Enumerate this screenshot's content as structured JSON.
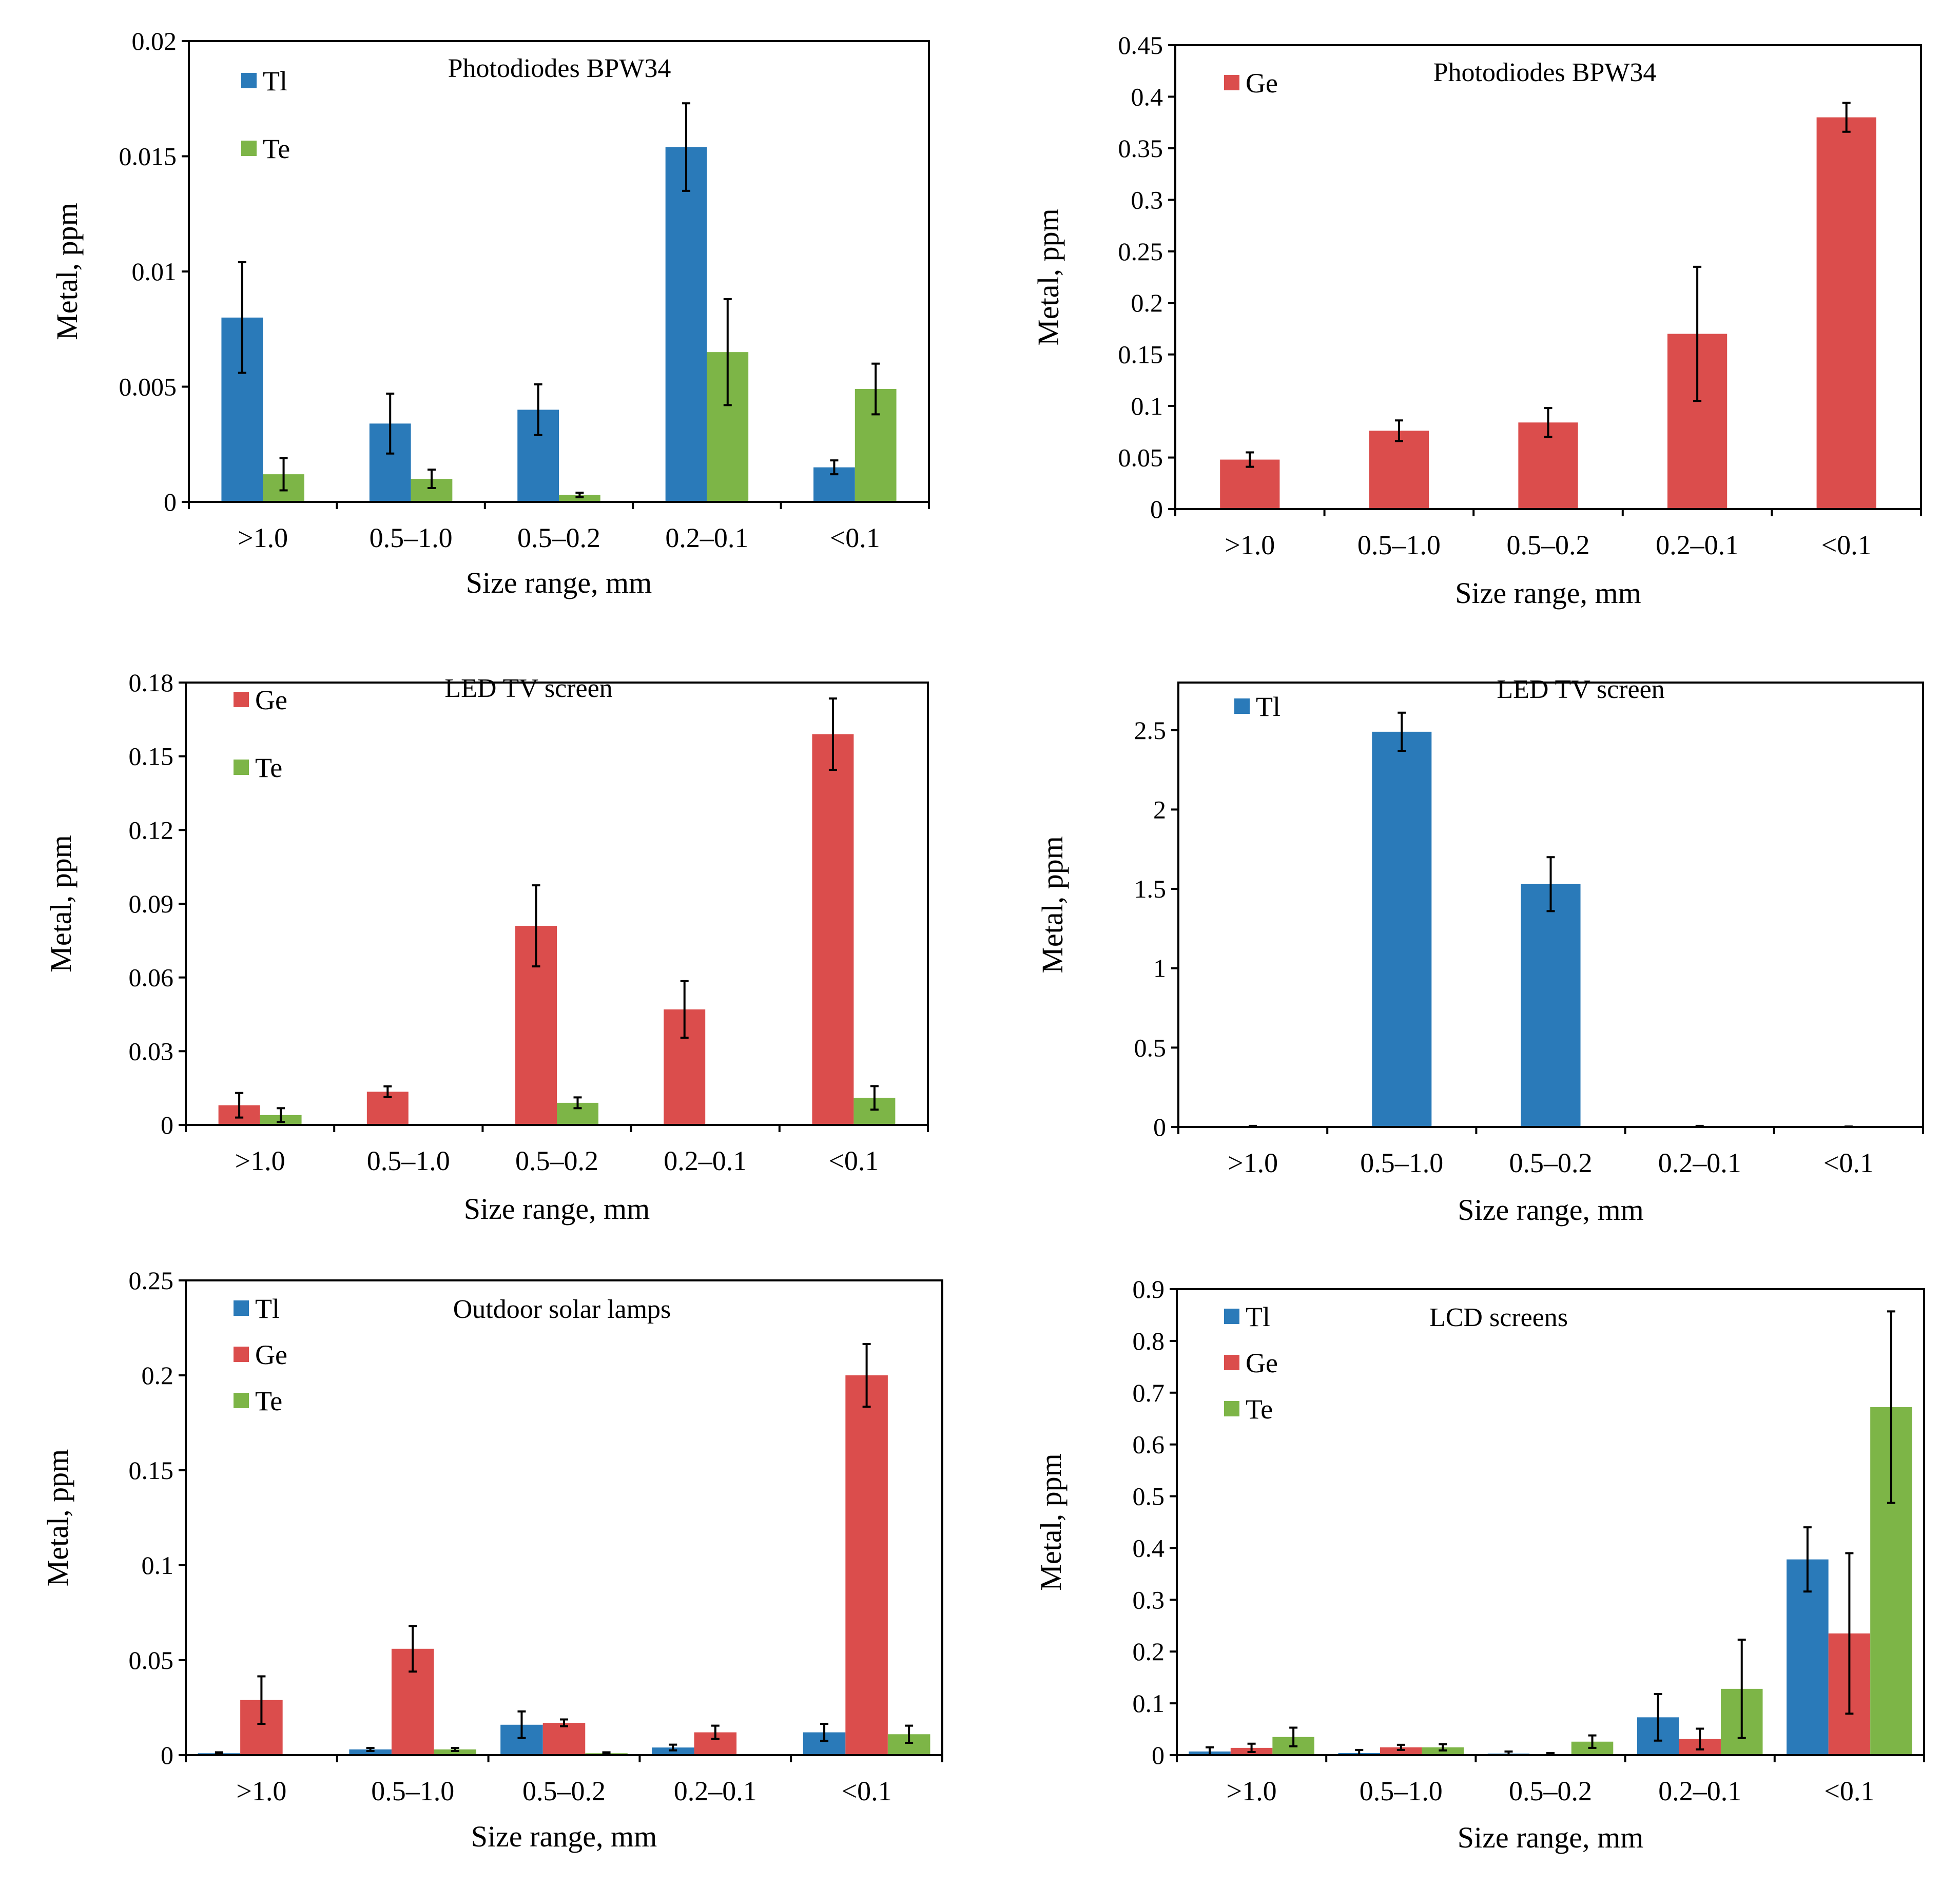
{
  "colors": {
    "Tl": "#2a7ab9",
    "Ge": "#db4d4c",
    "Te": "#7db547"
  },
  "chart_data": [
    {
      "type": "bar",
      "title": "Photodiodes BPW34",
      "categories": [
        ">1.0",
        "0.5–1.0",
        "0.5–0.2",
        "0.2–0.1",
        "<0.1"
      ],
      "xlabel": "Size range, mm",
      "ylabel": "Metal, ppm",
      "ylim": [
        0,
        0.02
      ],
      "yticks": [
        0,
        0.005,
        0.01,
        0.015,
        0.02
      ],
      "ytick_labels": [
        "0",
        "0.005",
        "0.01",
        "0.015",
        "0.02"
      ],
      "legend_position": "top-left",
      "series": [
        {
          "name": "Tl",
          "values": [
            0.008,
            0.0034,
            0.004,
            0.0154,
            0.0015
          ],
          "errors": [
            0.0024,
            0.0013,
            0.0011,
            0.0019,
            0.0003
          ]
        },
        {
          "name": "Te",
          "values": [
            0.0012,
            0.001,
            0.0003,
            0.0065,
            0.0049
          ],
          "errors": [
            0.0007,
            0.0004,
            0.0001,
            0.0023,
            0.0011
          ]
        }
      ]
    },
    {
      "type": "bar",
      "title": "Photodiodes BPW34",
      "categories": [
        ">1.0",
        "0.5–1.0",
        "0.5–0.2",
        "0.2–0.1",
        "<0.1"
      ],
      "xlabel": "Size range, mm",
      "ylabel": "Metal, ppm",
      "ylim": [
        0,
        0.45
      ],
      "yticks": [
        0,
        0.05,
        0.1,
        0.15,
        0.2,
        0.25,
        0.3,
        0.35,
        0.4,
        0.45
      ],
      "ytick_labels": [
        "0",
        "0.05",
        "0.1",
        "0.15",
        "0.2",
        "0.25",
        "0.3",
        "0.35",
        "0.4",
        "0.45"
      ],
      "legend_position": "top-left",
      "series": [
        {
          "name": "Ge",
          "values": [
            0.048,
            0.076,
            0.084,
            0.17,
            0.38
          ],
          "errors": [
            0.007,
            0.01,
            0.014,
            0.065,
            0.014
          ]
        }
      ]
    },
    {
      "type": "bar",
      "title": "LED TV screen",
      "categories": [
        ">1.0",
        "0.5–1.0",
        "0.5–0.2",
        "0.2–0.1",
        "<0.1"
      ],
      "xlabel": "Size range, mm",
      "ylabel": "Metal, ppm",
      "ylim": [
        0,
        0.18
      ],
      "yticks": [
        0,
        0.03,
        0.06,
        0.09,
        0.12,
        0.15,
        0.18
      ],
      "ytick_labels": [
        "0",
        "0.03",
        "0.06",
        "0.09",
        "0.12",
        "0.15",
        "0.18"
      ],
      "legend_position": "top-left",
      "series": [
        {
          "name": "Ge",
          "values": [
            0.008,
            0.0135,
            0.081,
            0.047,
            0.159
          ],
          "errors": [
            0.005,
            0.0022,
            0.0165,
            0.0115,
            0.0145
          ]
        },
        {
          "name": "Te",
          "values": [
            0.004,
            0,
            0.009,
            0,
            0.011
          ],
          "errors": [
            0.0028,
            0,
            0.0022,
            0,
            0.0048
          ]
        }
      ]
    },
    {
      "type": "bar",
      "title": "LED TV screen",
      "categories": [
        ">1.0",
        "0.5–1.0",
        "0.5–0.2",
        "0.2–0.1",
        "<0.1"
      ],
      "xlabel": "Size range, mm",
      "ylabel": "Metal, ppm",
      "ylim": [
        0,
        2.8
      ],
      "yticks": [
        0,
        0.5,
        1,
        1.5,
        2,
        2.5
      ],
      "ytick_labels": [
        "0",
        "0.5",
        "1",
        "1.5",
        "2",
        "2.5"
      ],
      "legend_position": "top-left",
      "series": [
        {
          "name": "Tl",
          "values": [
            0.004,
            2.49,
            1.53,
            0.004,
            0.002
          ],
          "errors": [
            0.003,
            0.12,
            0.17,
            0.003,
            0.001
          ]
        }
      ]
    },
    {
      "type": "bar",
      "title": "Outdoor solar lamps",
      "categories": [
        ">1.0",
        "0.5–1.0",
        "0.5–0.2",
        "0.2–0.1",
        "<0.1"
      ],
      "xlabel": "Size range, mm",
      "ylabel": "Metal, ppm",
      "ylim": [
        0,
        0.25
      ],
      "yticks": [
        0,
        0.05,
        0.1,
        0.15,
        0.2,
        0.25
      ],
      "ytick_labels": [
        "0",
        "0.05",
        "0.1",
        "0.15",
        "0.2",
        "0.25"
      ],
      "legend_position": "top-left",
      "series": [
        {
          "name": "Tl",
          "values": [
            0.001,
            0.003,
            0.016,
            0.004,
            0.012
          ],
          "errors": [
            0.0005,
            0.0008,
            0.007,
            0.0015,
            0.0045
          ]
        },
        {
          "name": "Ge",
          "values": [
            0.029,
            0.056,
            0.017,
            0.012,
            0.2
          ],
          "errors": [
            0.0125,
            0.012,
            0.0018,
            0.0035,
            0.0165
          ]
        },
        {
          "name": "Te",
          "values": [
            0,
            0.003,
            0.001,
            0,
            0.011
          ],
          "errors": [
            0,
            0.0008,
            0.0005,
            0,
            0.0045
          ]
        }
      ]
    },
    {
      "type": "bar",
      "title": "LCD screens",
      "categories": [
        ">1.0",
        "0.5–1.0",
        "0.5–0.2",
        "0.2–0.1",
        "<0.1"
      ],
      "xlabel": "Size range, mm",
      "ylabel": "Metal, ppm",
      "ylim": [
        0,
        0.9
      ],
      "yticks": [
        0,
        0.1,
        0.2,
        0.3,
        0.4,
        0.5,
        0.6,
        0.7,
        0.8,
        0.9
      ],
      "ytick_labels": [
        "0",
        "0.1",
        "0.2",
        "0.3",
        "0.4",
        "0.5",
        "0.6",
        "0.7",
        "0.8",
        "0.9"
      ],
      "legend_position": "top-left",
      "series": [
        {
          "name": "Tl",
          "values": [
            0.007,
            0.004,
            0.003,
            0.073,
            0.378
          ],
          "errors": [
            0.008,
            0.006,
            0.004,
            0.045,
            0.062
          ]
        },
        {
          "name": "Ge",
          "values": [
            0.014,
            0.015,
            0.002,
            0.031,
            0.235
          ],
          "errors": [
            0.008,
            0.005,
            0.002,
            0.02,
            0.155
          ]
        },
        {
          "name": "Te",
          "values": [
            0.035,
            0.015,
            0.026,
            0.128,
            0.672
          ],
          "errors": [
            0.018,
            0.006,
            0.012,
            0.095,
            0.185
          ]
        }
      ]
    }
  ]
}
